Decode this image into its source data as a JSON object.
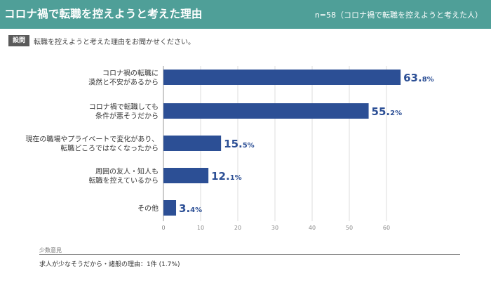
{
  "header": {
    "title": "コロナ禍で転職を控えようと考えた理由",
    "sample": "n=58（コロナ禍で転職を控えようと考えた人）"
  },
  "question": {
    "badge": "設問",
    "text": "転職を控えようと考えた理由をお聞かせください。"
  },
  "colors": {
    "header_bg": "#4f9f98",
    "bar": "#2c4f95",
    "value_text": "#2c4f95"
  },
  "chart_data": {
    "type": "bar",
    "orientation": "horizontal",
    "categories": [
      [
        "コロナ禍の転職に",
        "漠然と不安があるから"
      ],
      [
        "コロナ禍で転職しても",
        "条件が悪そうだから"
      ],
      [
        "現在の職場やプライベートで変化があり、",
        "転職どころではなくなったから"
      ],
      [
        "周囲の友人・知人も",
        "転職を控えているから"
      ],
      [
        "その他"
      ]
    ],
    "values": [
      63.8,
      55.2,
      15.5,
      12.1,
      3.4
    ],
    "value_labels": [
      {
        "int": "63.",
        "dec": "8%"
      },
      {
        "int": "55.",
        "dec": "2%"
      },
      {
        "int": "15.",
        "dec": "5%"
      },
      {
        "int": "12.",
        "dec": "1%"
      },
      {
        "int": "3.",
        "dec": "4%"
      }
    ],
    "xlim": [
      0,
      70
    ],
    "ticks": [
      0,
      10,
      20,
      30,
      40,
      50,
      60
    ],
    "grid": true
  },
  "footer": {
    "label": "少数意見",
    "text": "求人が少なそうだから・諸般の理由：1件 (1.7%)"
  }
}
